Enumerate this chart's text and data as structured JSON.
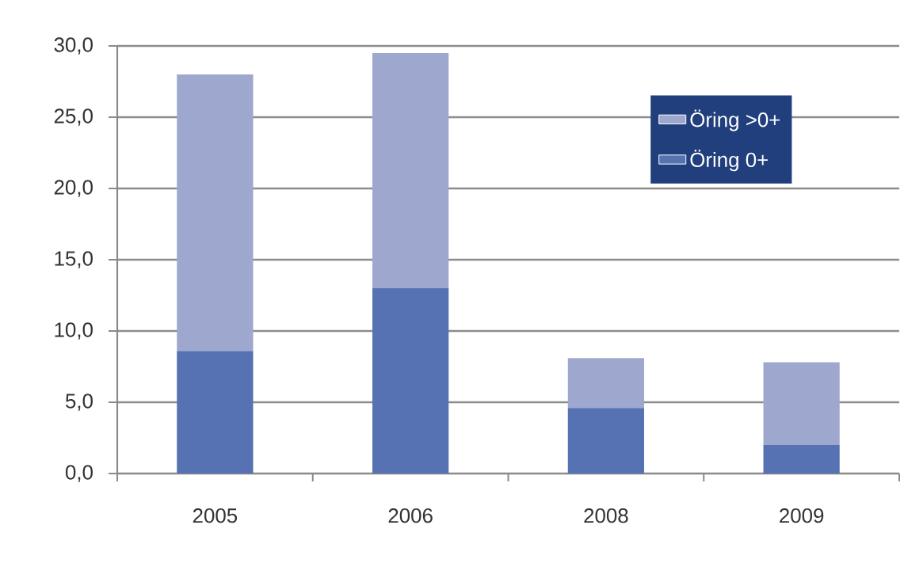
{
  "chart_data": {
    "type": "bar",
    "stacked": true,
    "categories": [
      "2005",
      "2006",
      "2008",
      "2009"
    ],
    "series": [
      {
        "name": "Öring 0+",
        "color": "#5672b2",
        "values": [
          8.6,
          13.0,
          4.6,
          2.0
        ]
      },
      {
        "name": "Öring >0+",
        "color": "#9ea8cf",
        "values": [
          19.4,
          16.5,
          3.5,
          5.8
        ]
      }
    ],
    "ylim": [
      0,
      30
    ],
    "yticks": [
      {
        "value": 0,
        "label": "0,0"
      },
      {
        "value": 5,
        "label": "5,0"
      },
      {
        "value": 10,
        "label": "10,0"
      },
      {
        "value": 15,
        "label": "15,0"
      },
      {
        "value": 20,
        "label": "20,0"
      },
      {
        "value": 25,
        "label": "25,0"
      },
      {
        "value": 30,
        "label": "30,0"
      }
    ],
    "grid": "y",
    "legend": "top right"
  }
}
